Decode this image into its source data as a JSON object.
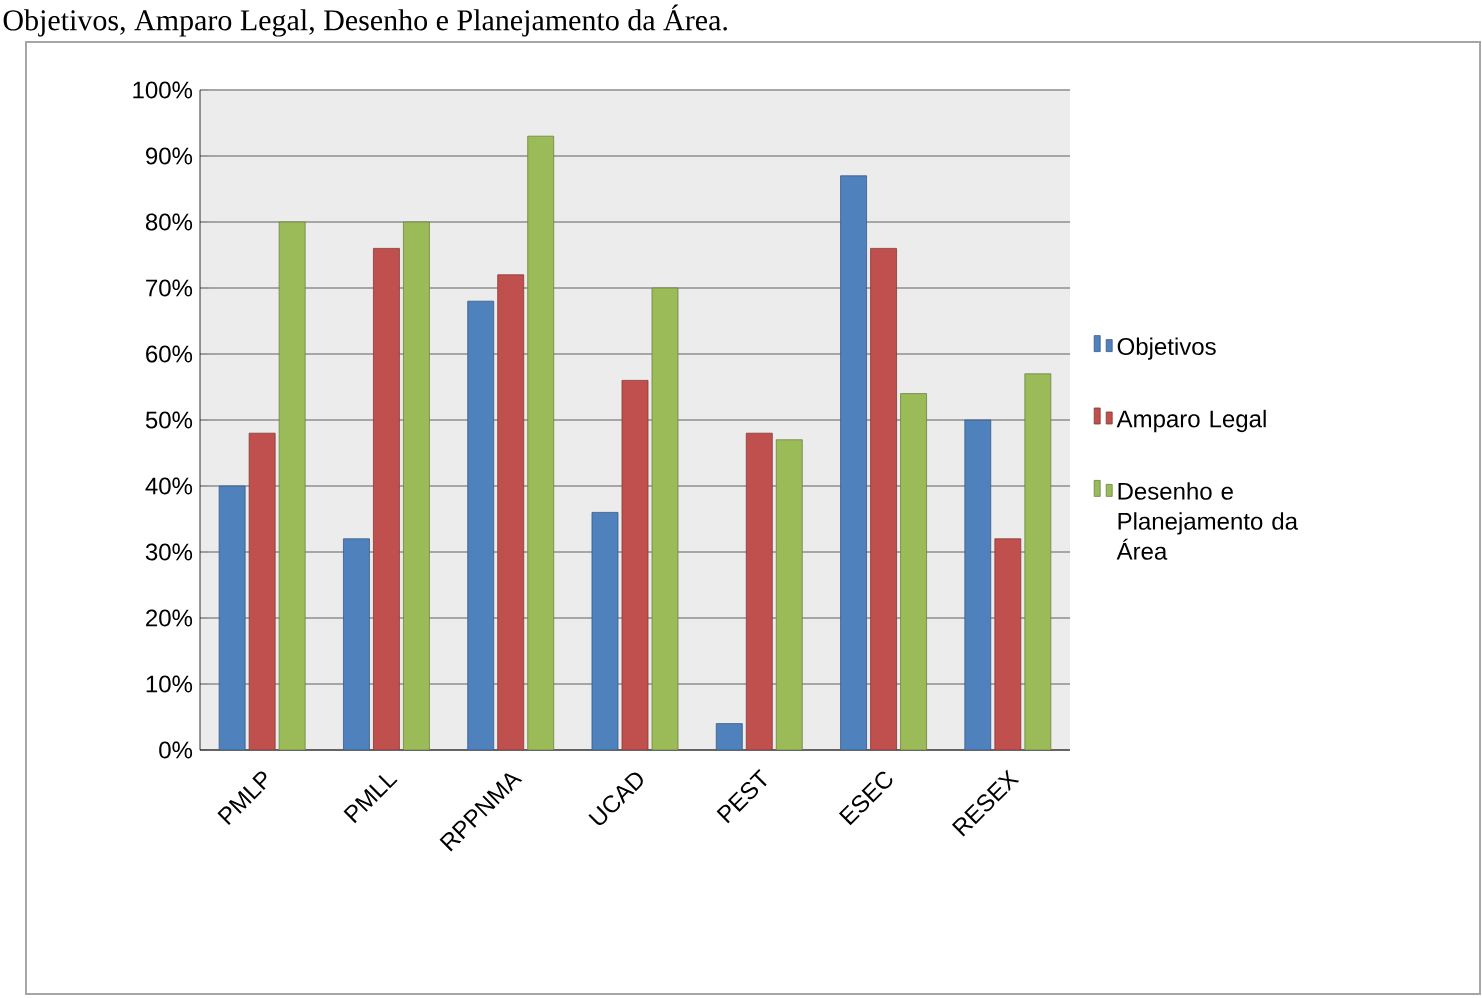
{
  "chart_data": {
    "type": "bar",
    "title": "Objetivos, Amparo Legal, Desenho e Planejamento da Área.",
    "categories": [
      "PMLP",
      "PMLL",
      "RPPNMA",
      "UCAD",
      "PEST",
      "ESEC",
      "RESEX"
    ],
    "series": [
      {
        "name": "Objetivos",
        "color": "#4f81bd",
        "values": [
          40,
          32,
          68,
          36,
          4,
          87,
          50
        ]
      },
      {
        "name": "Amparo Legal",
        "color": "#c0504d",
        "values": [
          48,
          76,
          72,
          56,
          48,
          76,
          32
        ]
      },
      {
        "name": "Desenho e Planejamento da Área",
        "color": "#9bbb59",
        "values": [
          80,
          80,
          93,
          70,
          47,
          54,
          57
        ]
      }
    ],
    "ylim": [
      0,
      100
    ],
    "yticks": [
      {
        "value": 0,
        "label": "0%"
      },
      {
        "value": 10,
        "label": "10%"
      },
      {
        "value": 20,
        "label": "20%"
      },
      {
        "value": 30,
        "label": "30%"
      },
      {
        "value": 40,
        "label": "40%"
      },
      {
        "value": 50,
        "label": "50%"
      },
      {
        "value": 60,
        "label": "60%"
      },
      {
        "value": 70,
        "label": "70%"
      },
      {
        "value": 80,
        "label": "80%"
      },
      {
        "value": 90,
        "label": "90%"
      },
      {
        "value": 100,
        "label": "100%"
      }
    ],
    "grid": "y",
    "legend": "right"
  }
}
